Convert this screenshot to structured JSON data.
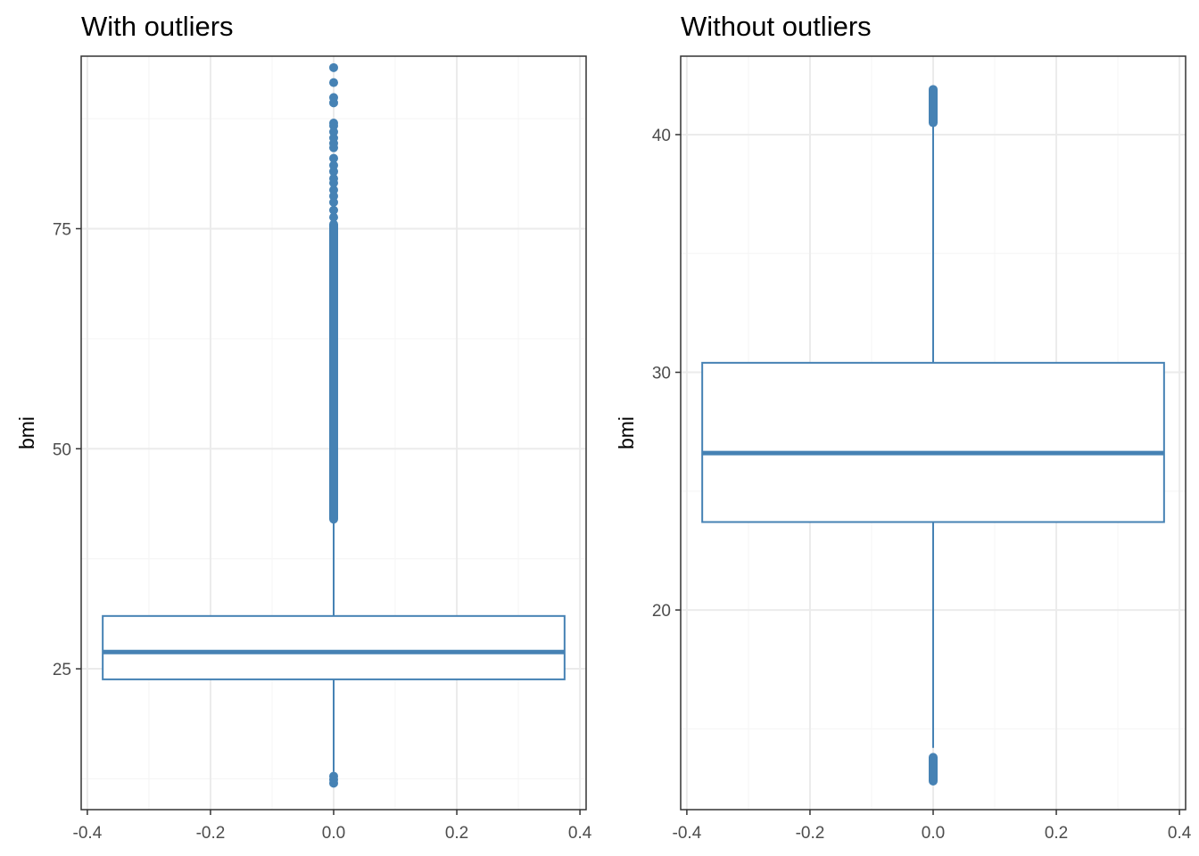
{
  "colors": {
    "box": "#4682b4",
    "grid_major": "#ebebeb",
    "grid_minor": "#f5f5f5",
    "panel_border": "#333333",
    "tick_text": "#4d4d4d"
  },
  "chart_data": [
    {
      "type": "boxplot",
      "title": "With outliers",
      "xlabel": "",
      "ylabel": "bmi",
      "xlim": [
        -0.41,
        0.41
      ],
      "ylim": [
        9.0,
        94.6
      ],
      "x_ticks": [
        -0.4,
        -0.2,
        0.0,
        0.2,
        0.4
      ],
      "x_tick_labels": [
        "-0.4",
        "-0.2",
        "0.0",
        "0.2",
        "0.4"
      ],
      "y_ticks": [
        25,
        50,
        75
      ],
      "y_tick_labels": [
        "25",
        "50",
        "75"
      ],
      "grid": true,
      "box": {
        "x_center": 0.0,
        "width": 0.75,
        "lower_whisker": 13.3,
        "q1": 23.8,
        "median": 26.9,
        "q3": 31.0,
        "upper_whisker": 41.9
      },
      "outliers_high_dense_range": [
        42.0,
        75.5
      ],
      "outliers": [
        12.0,
        12.4,
        12.8,
        76.3,
        77.1,
        78.0,
        78.7,
        79.4,
        80.2,
        80.7,
        81.5,
        82.2,
        83.0,
        84.2,
        84.7,
        85.3,
        86.0,
        86.7,
        87.0,
        89.3,
        89.9,
        91.6,
        93.3
      ]
    },
    {
      "type": "boxplot",
      "title": "Without outliers",
      "xlabel": "",
      "ylabel": "bmi",
      "xlim": [
        -0.41,
        0.41
      ],
      "ylim": [
        11.6,
        43.3
      ],
      "x_ticks": [
        -0.4,
        -0.2,
        0.0,
        0.2,
        0.4
      ],
      "x_tick_labels": [
        "-0.4",
        "-0.2",
        "0.0",
        "0.2",
        "0.4"
      ],
      "y_ticks": [
        20,
        30,
        40
      ],
      "y_tick_labels": [
        "20",
        "30",
        "40"
      ],
      "grid": true,
      "box": {
        "x_center": 0.0,
        "width": 0.75,
        "lower_whisker": 14.2,
        "q1": 23.7,
        "median": 26.6,
        "q3": 30.4,
        "upper_whisker": 40.5
      },
      "outliers_low_dense_range": [
        12.8,
        13.8
      ],
      "outliers_high_dense_range": [
        40.5,
        41.9
      ],
      "outliers": []
    }
  ]
}
